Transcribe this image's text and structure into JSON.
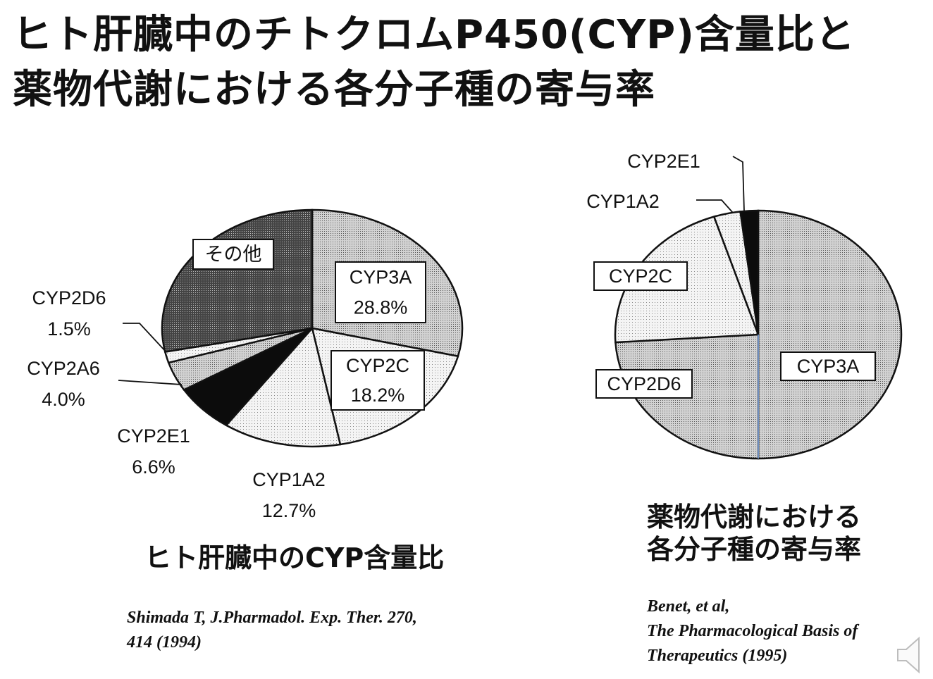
{
  "title": {
    "line1": "ヒト肝臓中のチトクロムP450(CYP)含量比と",
    "line2": "薬物代謝における各分子種の寄与率"
  },
  "chart_data": [
    {
      "type": "pie",
      "title": "ヒト肝臓中のCYP含量比",
      "slices": [
        {
          "label": "CYP3A",
          "value": 28.8,
          "value_text": "28.8%",
          "pattern": "dots-medium"
        },
        {
          "label": "CYP2C",
          "value": 18.2,
          "value_text": "18.2%",
          "pattern": "dots-light"
        },
        {
          "label": "CYP1A2",
          "value": 12.7,
          "value_text": "12.7%",
          "pattern": "dots-light"
        },
        {
          "label": "CYP2E1",
          "value": 6.6,
          "value_text": "6.6%",
          "pattern": "solid-black"
        },
        {
          "label": "CYP2A6",
          "value": 4.0,
          "value_text": "4.0%",
          "pattern": "dots-medium"
        },
        {
          "label": "CYP2D6",
          "value": 1.5,
          "value_text": "1.5%",
          "pattern": "dots-light"
        },
        {
          "label": "その他",
          "value": 28.2,
          "value_text": "",
          "pattern": "dots-dark"
        }
      ]
    },
    {
      "type": "pie",
      "title": "薬物代謝における各分子種の寄与率",
      "slices": [
        {
          "label": "CYP3A",
          "value": 50,
          "pattern": "dots-medium"
        },
        {
          "label": "CYP2D6",
          "value": 24,
          "pattern": "dots-medium"
        },
        {
          "label": "CYP2C",
          "value": 21,
          "pattern": "dots-light"
        },
        {
          "label": "CYP1A2",
          "value": 3,
          "pattern": "dots-light"
        },
        {
          "label": "CYP2E1",
          "value": 2,
          "pattern": "solid-black"
        }
      ]
    }
  ],
  "captions": {
    "left": "ヒト肝臓中のCYP含量比",
    "right_line1": "薬物代謝における",
    "right_line2": "各分子種の寄与率"
  },
  "references": {
    "left_line1": "Shimada T, J.Pharmadol. Exp. Ther. 270,",
    "left_line2": "414 (1994)",
    "right_line1": "Benet, et al,",
    "right_line2": "The Pharmacological Basis of",
    "right_line3": "Therapeutics (1995)"
  },
  "colors": {
    "ink": "#111111",
    "divider_accent": "#6f8fbf"
  },
  "icons": {
    "speaker": "speaker-icon"
  }
}
